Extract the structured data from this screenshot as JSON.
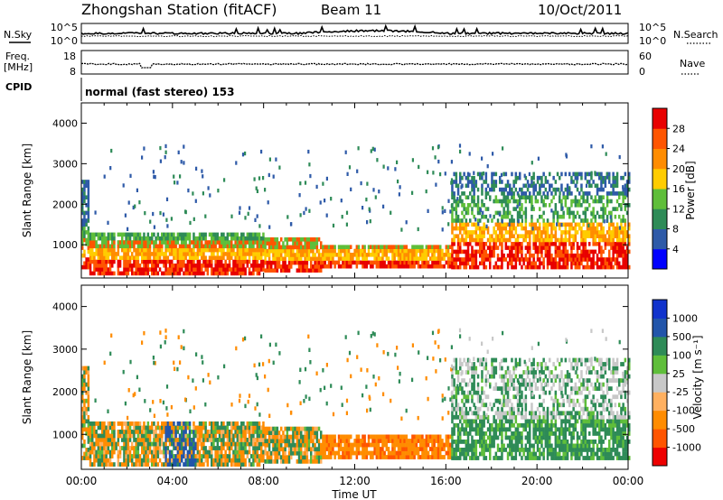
{
  "header": {
    "station": "Zhongshan Station (fitACF)",
    "beam": "Beam 11",
    "date": "10/Oct/2011"
  },
  "top_panel": {
    "left_label": "N.Sky",
    "right_label": "N.Search",
    "left_ticks": [
      "10^5",
      "10^0"
    ],
    "right_ticks": [
      "10^5",
      "10^0"
    ]
  },
  "freq_panel": {
    "label_line1": "Freq.",
    "label_line2": "[MHz]",
    "right_label": "Nave",
    "left_ticks": [
      "18",
      "8"
    ],
    "right_ticks": [
      "60",
      "0"
    ]
  },
  "cpid": {
    "label": "CPID",
    "text": "normal (fast stereo) 153"
  },
  "colors": {
    "power": [
      "#0000ff",
      "#2e5aa8",
      "#2e8b57",
      "#5fbe3a",
      "#ffcc00",
      "#ff8c00",
      "#ff5500",
      "#e80000"
    ],
    "velocity": [
      "#ee0000",
      "#ff5500",
      "#ff8c00",
      "#ffb060",
      "#c8c8c8",
      "#5fbe3a",
      "#2e8b57",
      "#2255aa",
      "#1133cc"
    ]
  },
  "chart_data": [
    {
      "type": "heatmap",
      "panel": "power",
      "ylabel": "Slant Range [km]",
      "ylim": [
        180,
        4500
      ],
      "y_ticks": [
        1000,
        2000,
        3000,
        4000
      ],
      "x_ticks": [
        "00:00",
        "04:00",
        "08:00",
        "12:00",
        "16:00",
        "20:00",
        "00:00"
      ],
      "colorbar": {
        "label": "Power [dB]",
        "ticks": [
          "4",
          "8",
          "12",
          "16",
          "20",
          "24",
          "28"
        ]
      },
      "regions": [
        {
          "t": [
            0.0,
            0.3
          ],
          "range": [
            400,
            2600
          ],
          "values": [
            8,
            20
          ]
        },
        {
          "t": [
            0.3,
            3.5
          ],
          "range": [
            250,
            1300
          ],
          "values": [
            8,
            30
          ]
        },
        {
          "t": [
            3.5,
            7.5
          ],
          "range": [
            250,
            1300
          ],
          "values": [
            12,
            30
          ]
        },
        {
          "t": [
            7.5,
            10.5
          ],
          "range": [
            300,
            1200
          ],
          "values": [
            10,
            28
          ]
        },
        {
          "t": [
            10.5,
            16.2
          ],
          "range": [
            400,
            1000
          ],
          "values": [
            10,
            28
          ]
        },
        {
          "t": [
            16.2,
            20.0
          ],
          "range": [
            400,
            2800
          ],
          "values": [
            6,
            28
          ]
        },
        {
          "t": [
            20.0,
            24.0
          ],
          "range": [
            400,
            2600
          ],
          "values": [
            6,
            28
          ]
        }
      ]
    },
    {
      "type": "heatmap",
      "panel": "velocity",
      "ylabel": "Slant Range [km]",
      "ylim": [
        180,
        4500
      ],
      "y_ticks": [
        1000,
        2000,
        3000,
        4000
      ],
      "x_ticks": [
        "00:00",
        "04:00",
        "08:00",
        "12:00",
        "16:00",
        "20:00",
        "00:00"
      ],
      "xlabel": "Time UT",
      "colorbar": {
        "label": "Velocity [m s⁻¹]",
        "ticks": [
          "1000",
          "500",
          "100",
          "25",
          "-25",
          "-100",
          "-500",
          "-1000"
        ]
      },
      "regions": [
        {
          "t": [
            0.0,
            3.5
          ],
          "range": [
            250,
            1300
          ],
          "values": [
            -500,
            100
          ]
        },
        {
          "t": [
            3.5,
            5.0
          ],
          "range": [
            250,
            1300
          ],
          "values": [
            -500,
            1000
          ]
        },
        {
          "t": [
            5.0,
            10.5
          ],
          "range": [
            300,
            1200
          ],
          "values": [
            -500,
            100
          ]
        },
        {
          "t": [
            10.5,
            16.2
          ],
          "range": [
            400,
            1000
          ],
          "values": [
            -500,
            -100
          ]
        },
        {
          "t": [
            16.2,
            24.0
          ],
          "range": [
            400,
            2800
          ],
          "values": [
            -25,
            500
          ]
        }
      ]
    }
  ]
}
